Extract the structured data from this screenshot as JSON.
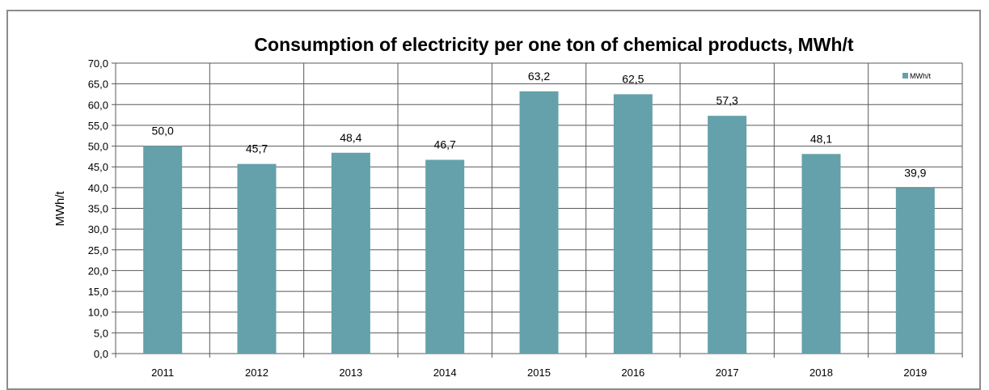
{
  "chart_data": {
    "type": "bar",
    "title": "Consumption of electricity per one ton of chemical products, MWh/t",
    "xlabel": "",
    "ylabel": "MWh/t",
    "categories": [
      "2011",
      "2012",
      "2013",
      "2014",
      "2015",
      "2016",
      "2017",
      "2018",
      "2019"
    ],
    "series": [
      {
        "name": "MWh/t",
        "values": [
          50.0,
          45.7,
          48.4,
          46.7,
          63.2,
          62.5,
          57.3,
          48.1,
          39.9
        ],
        "value_labels": [
          "50,0",
          "45,7",
          "48,4",
          "46,7",
          "63,2",
          "62,5",
          "57,3",
          "48,1",
          "39,9"
        ]
      }
    ],
    "ylim": [
      0,
      70
    ],
    "y_ticks": [
      "0,0",
      "5,0",
      "10,0",
      "15,0",
      "20,0",
      "25,0",
      "30,0",
      "35,0",
      "40,0",
      "45,0",
      "50,0",
      "55,0",
      "60,0",
      "65,0",
      "70,0"
    ],
    "grid": true,
    "vertical_category_grid": true,
    "legend_position": "top-right",
    "bar_color": "#64a1aa",
    "grid_color": "#595959"
  }
}
